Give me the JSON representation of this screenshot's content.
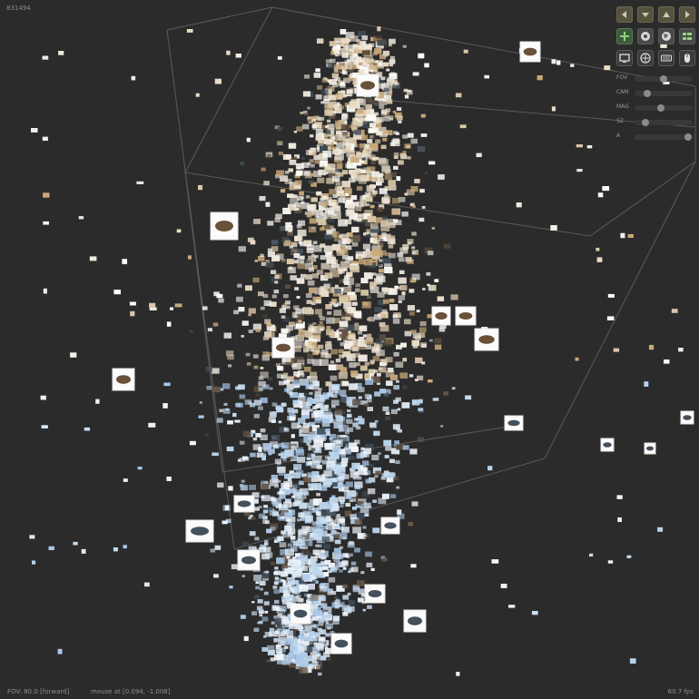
{
  "header": {
    "point_count": "831494"
  },
  "status": {
    "fov": "FOV: 80.0 [forward]",
    "mouse": "mouse at [0.094, -1.008]",
    "fps": "60.7 fps"
  },
  "controls": {
    "nav_buttons": [
      {
        "name": "nav-left-button",
        "icon": "arrow-left-icon"
      },
      {
        "name": "nav-down-button",
        "icon": "arrow-down-icon"
      },
      {
        "name": "nav-up-button",
        "icon": "arrow-up-icon"
      },
      {
        "name": "nav-right-button",
        "icon": "arrow-right-icon"
      }
    ],
    "mode_buttons": [
      {
        "name": "add-button",
        "icon": "plus-icon"
      },
      {
        "name": "target-button",
        "icon": "disc-icon"
      },
      {
        "name": "globe-button",
        "icon": "globe-icon"
      },
      {
        "name": "grid-button",
        "icon": "grid-icon"
      }
    ],
    "input_buttons": [
      {
        "name": "display-button",
        "icon": "monitor-icon"
      },
      {
        "name": "gamepad-button",
        "icon": "gamepad-icon"
      },
      {
        "name": "keyboard-button",
        "icon": "keyboard-icon"
      },
      {
        "name": "mouse-button",
        "icon": "mouse-icon"
      }
    ],
    "sliders": [
      {
        "label": "FOV",
        "value": 0.5
      },
      {
        "label": "CAM",
        "value": 0.17
      },
      {
        "label": "MAG",
        "value": 0.45
      },
      {
        "label": "SZ",
        "value": 0.15
      },
      {
        "label": "A",
        "value": 0.98
      }
    ]
  },
  "colors": {
    "background": "#2b2b2b",
    "accent_green": "#8fd27e",
    "thumb_warm": "#f2ece0",
    "thumb_cool": "#cfe3f5"
  }
}
